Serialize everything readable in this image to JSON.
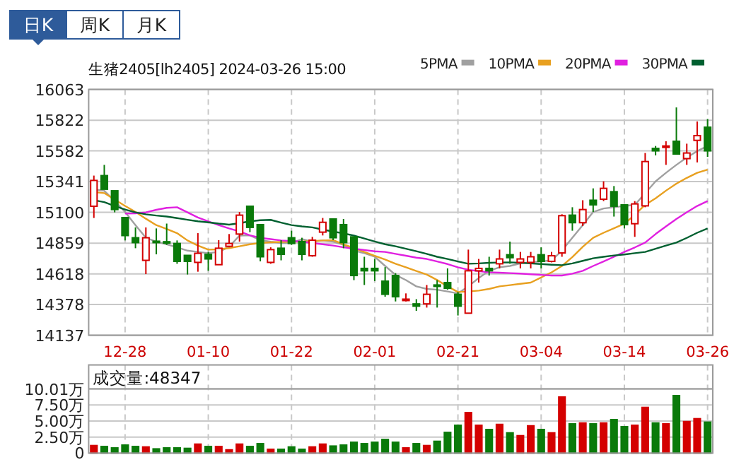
{
  "chart_data": [
    {
      "type": "candlestick",
      "title": "生猪2405[lh2405] 2024-03-26 15:00",
      "annotations": [
        "日K",
        "周K",
        "月K"
      ],
      "categories": [
        null,
        null,
        null,
        "12-28",
        null,
        null,
        null,
        null,
        null,
        null,
        null,
        "01-10",
        null,
        null,
        null,
        null,
        null,
        null,
        null,
        "01-22",
        null,
        null,
        null,
        null,
        null,
        null,
        null,
        "02-01",
        null,
        null,
        null,
        null,
        null,
        null,
        null,
        "02-21",
        null,
        null,
        null,
        null,
        null,
        null,
        null,
        "03-04",
        null,
        null,
        null,
        null,
        null,
        null,
        null,
        "03-14",
        null,
        null,
        null,
        null,
        null,
        null,
        null,
        "03-26"
      ],
      "ohlc": [
        [
          15148,
          15388,
          15056,
          15350
        ],
        [
          15388,
          15472,
          15281,
          15281
        ],
        [
          15269,
          15269,
          15100,
          15122
        ],
        [
          15059,
          15059,
          14880,
          14918
        ],
        [
          14901,
          14982,
          14819,
          14863
        ],
        [
          14724,
          14982,
          14616,
          14901
        ],
        [
          14874,
          14974,
          14771,
          14863
        ],
        [
          14870,
          15012,
          14845,
          14859
        ],
        [
          14856,
          14880,
          14697,
          14716
        ],
        [
          14763,
          14763,
          14613,
          14716
        ],
        [
          14708,
          14937,
          14635,
          14779
        ],
        [
          14771,
          14790,
          14642,
          14735
        ],
        [
          14690,
          14882,
          14690,
          14819
        ],
        [
          14834,
          14930,
          14826,
          14856
        ],
        [
          14930,
          15103,
          14871,
          15078
        ],
        [
          15148,
          15148,
          14945,
          14982
        ],
        [
          15004,
          15004,
          14716,
          14752
        ],
        [
          14708,
          14826,
          14697,
          14808
        ],
        [
          14819,
          14882,
          14724,
          14771
        ],
        [
          14901,
          14956,
          14845,
          14856
        ],
        [
          14871,
          14901,
          14724,
          14771
        ],
        [
          14760,
          14908,
          14752,
          14882
        ],
        [
          14945,
          15056,
          14919,
          15022
        ],
        [
          15048,
          15048,
          14882,
          14901
        ],
        [
          15004,
          15048,
          14819,
          14863
        ],
        [
          14908,
          14908,
          14569,
          14605
        ],
        [
          14661,
          14752,
          14531,
          14642
        ],
        [
          14661,
          14735,
          14561,
          14642
        ],
        [
          14561,
          14671,
          14439,
          14458
        ],
        [
          14605,
          14624,
          14402,
          14439
        ],
        [
          14409,
          14465,
          14402,
          14420
        ],
        [
          14383,
          14420,
          14328,
          14365
        ],
        [
          14383,
          14531,
          14354,
          14458
        ],
        [
          14531,
          14569,
          14354,
          14520
        ],
        [
          14550,
          14661,
          14494,
          14505
        ],
        [
          14458,
          14476,
          14292,
          14365
        ],
        [
          14310,
          14808,
          14310,
          14642
        ],
        [
          14642,
          14735,
          14550,
          14661
        ],
        [
          14661,
          14752,
          14605,
          14642
        ],
        [
          14697,
          14808,
          14661,
          14735
        ],
        [
          14768,
          14871,
          14697,
          14745
        ],
        [
          14708,
          14790,
          14661,
          14735
        ],
        [
          14708,
          14790,
          14661,
          14752
        ],
        [
          14768,
          14826,
          14661,
          14716
        ],
        [
          14716,
          14790,
          14708,
          14760
        ],
        [
          14782,
          15085,
          14752,
          15074
        ],
        [
          15078,
          15140,
          14956,
          15019
        ],
        [
          15019,
          15195,
          14993,
          15122
        ],
        [
          15195,
          15288,
          15103,
          15159
        ],
        [
          15203,
          15343,
          15188,
          15288
        ],
        [
          15262,
          15306,
          15067,
          15148
        ],
        [
          15159,
          15159,
          14974,
          15004
        ],
        [
          15011,
          15188,
          14908,
          15166
        ],
        [
          15151,
          15565,
          15140,
          15498
        ],
        [
          15601,
          15620,
          15546,
          15582
        ],
        [
          15609,
          15657,
          15472,
          15620
        ],
        [
          15657,
          15922,
          15557,
          15557
        ],
        [
          15521,
          15638,
          15472,
          15565
        ],
        [
          15664,
          15812,
          15491,
          15701
        ],
        [
          15767,
          15831,
          15535,
          15582
        ]
      ],
      "colors": [
        "#d40000",
        "#0a7a0a",
        "#0a7a0a",
        "#0a7a0a",
        "#0a7a0a",
        "#d40000",
        "#0a7a0a",
        "#0a7a0a",
        "#0a7a0a",
        "#0a7a0a",
        "#d40000",
        "#0a7a0a",
        "#d40000",
        "#d40000",
        "#d40000",
        "#0a7a0a",
        "#0a7a0a",
        "#d40000",
        "#0a7a0a",
        "#0a7a0a",
        "#0a7a0a",
        "#d40000",
        "#d40000",
        "#0a7a0a",
        "#0a7a0a",
        "#0a7a0a",
        "#0a7a0a",
        "#0a7a0a",
        "#0a7a0a",
        "#0a7a0a",
        "#d40000",
        "#0a7a0a",
        "#d40000",
        "#0a7a0a",
        "#0a7a0a",
        "#0a7a0a",
        "#d40000",
        "#d40000",
        "#0a7a0a",
        "#d40000",
        "#0a7a0a",
        "#d40000",
        "#d40000",
        "#0a7a0a",
        "#d40000",
        "#d40000",
        "#0a7a0a",
        "#d40000",
        "#0a7a0a",
        "#d40000",
        "#0a7a0a",
        "#0a7a0a",
        "#d40000",
        "#d40000",
        "#0a7a0a",
        "#d40000",
        "#0a7a0a",
        "#d40000",
        "#d40000",
        "#0a7a0a"
      ],
      "series": [
        {
          "name": "5PMA",
          "type": "line",
          "color": "#a0a0a0",
          "values": [
            15280,
            15269,
            15190,
            15103,
            15000,
            14901,
            14870,
            14850,
            14826,
            14800,
            14790,
            14780,
            14790,
            14830,
            14918,
            14920,
            14882,
            14870,
            14860,
            14860,
            14890,
            14870,
            14880,
            14870,
            14845,
            14800,
            14780,
            14752,
            14680,
            14610,
            14569,
            14520,
            14500,
            14494,
            14480,
            14465,
            14520,
            14586,
            14642,
            14670,
            14680,
            14700,
            14710,
            14715,
            14724,
            14800,
            14901,
            15000,
            15103,
            15130,
            15140,
            15150,
            15159,
            15250,
            15343,
            15410,
            15472,
            15530,
            15580,
            15620
          ]
        },
        {
          "name": "10PMA",
          "type": "line",
          "color": "#e8a020",
          "values": [
            15260,
            15251,
            15200,
            15150,
            15103,
            15050,
            15000,
            14970,
            14937,
            14880,
            14840,
            14808,
            14810,
            14820,
            14834,
            14850,
            14860,
            14865,
            14868,
            14870,
            14871,
            14875,
            14880,
            14882,
            14850,
            14820,
            14790,
            14760,
            14730,
            14697,
            14670,
            14640,
            14613,
            14570,
            14520,
            14476,
            14480,
            14487,
            14500,
            14520,
            14530,
            14540,
            14550,
            14590,
            14630,
            14680,
            14750,
            14830,
            14901,
            14940,
            14975,
            15011,
            15080,
            15159,
            15210,
            15270,
            15325,
            15370,
            15410,
            15435
          ]
        },
        {
          "name": "20PMA",
          "type": "line",
          "color": "#e020e0",
          "values": [
            null,
            null,
            null,
            15090,
            15092,
            15100,
            15120,
            15135,
            15140,
            15100,
            15060,
            15029,
            15000,
            14974,
            14950,
            14920,
            14900,
            14890,
            14880,
            14875,
            14871,
            14860,
            14850,
            14840,
            14826,
            14815,
            14805,
            14795,
            14790,
            14775,
            14760,
            14745,
            14735,
            14715,
            14695,
            14670,
            14650,
            14640,
            14630,
            14627,
            14624,
            14620,
            14615,
            14610,
            14605,
            14605,
            14620,
            14642,
            14680,
            14715,
            14752,
            14790,
            14825,
            14863,
            14930,
            14990,
            15048,
            15100,
            15150,
            15188
          ]
        },
        {
          "name": "30PMA",
          "type": "line",
          "color": "#006030",
          "values": [
            15195,
            15180,
            15150,
            15122,
            15100,
            15085,
            15075,
            15067,
            15055,
            15042,
            15030,
            15022,
            15012,
            15004,
            15015,
            15030,
            15038,
            15041,
            15020,
            15000,
            14990,
            14982,
            14965,
            14950,
            14935,
            14918,
            14895,
            14872,
            14850,
            14834,
            14815,
            14795,
            14775,
            14752,
            14735,
            14715,
            14697,
            14700,
            14705,
            14707,
            14708,
            14705,
            14700,
            14695,
            14690,
            14686,
            14700,
            14720,
            14740,
            14752,
            14762,
            14770,
            14780,
            14790,
            14815,
            14840,
            14863,
            14900,
            14940,
            14974
          ]
        }
      ],
      "ylim": [
        14137,
        16063
      ],
      "yticks": [
        14137,
        14378,
        14618,
        14859,
        15100,
        15341,
        15582,
        15822,
        16063
      ],
      "grid": true,
      "legend": "top right"
    },
    {
      "type": "bar",
      "title": "成交量:48347",
      "categories": [
        null,
        null,
        null,
        null,
        null,
        null,
        null,
        null,
        null,
        null,
        null,
        null,
        null,
        null,
        null,
        null,
        null,
        null,
        null,
        null,
        null,
        null,
        null,
        null,
        null,
        null,
        null,
        null,
        null,
        null,
        null,
        null,
        null,
        null,
        null,
        null,
        null,
        null,
        null,
        null,
        null,
        null,
        null,
        null,
        null,
        null,
        null,
        null,
        null,
        null,
        null,
        null,
        null,
        null,
        null,
        null,
        null,
        null,
        null,
        null
      ],
      "values": [
        1.18,
        1.03,
        0.81,
        1.25,
        1.03,
        0.96,
        0.66,
        0.81,
        0.81,
        0.74,
        1.4,
        1.03,
        1.03,
        0.51,
        1.4,
        1.03,
        1.47,
        0.59,
        0.59,
        0.96,
        0.59,
        0.96,
        1.4,
        1.1,
        1.25,
        1.69,
        1.47,
        1.69,
        2.13,
        1.69,
        0.81,
        1.47,
        1.18,
        1.84,
        3.23,
        4.34,
        6.32,
        4.34,
        3.68,
        4.48,
        3.16,
        2.72,
        4.26,
        3.68,
        3.16,
        8.75,
        4.56,
        4.7,
        4.56,
        4.7,
        5.22,
        4.12,
        4.34,
        7.13,
        4.7,
        4.56,
        8.97,
        4.92,
        5.37,
        4.83
      ],
      "colors": [
        "#d40000",
        "#0a7a0a",
        "#0a7a0a",
        "#0a7a0a",
        "#0a7a0a",
        "#d40000",
        "#0a7a0a",
        "#0a7a0a",
        "#0a7a0a",
        "#0a7a0a",
        "#d40000",
        "#0a7a0a",
        "#d40000",
        "#d40000",
        "#d40000",
        "#0a7a0a",
        "#0a7a0a",
        "#d40000",
        "#0a7a0a",
        "#0a7a0a",
        "#0a7a0a",
        "#d40000",
        "#d40000",
        "#0a7a0a",
        "#0a7a0a",
        "#0a7a0a",
        "#0a7a0a",
        "#0a7a0a",
        "#0a7a0a",
        "#0a7a0a",
        "#d40000",
        "#0a7a0a",
        "#d40000",
        "#0a7a0a",
        "#0a7a0a",
        "#0a7a0a",
        "#d40000",
        "#d40000",
        "#0a7a0a",
        "#d40000",
        "#0a7a0a",
        "#d40000",
        "#d40000",
        "#0a7a0a",
        "#d40000",
        "#d40000",
        "#0a7a0a",
        "#d40000",
        "#0a7a0a",
        "#d40000",
        "#0a7a0a",
        "#0a7a0a",
        "#d40000",
        "#d40000",
        "#0a7a0a",
        "#d40000",
        "#0a7a0a",
        "#d40000",
        "#d40000",
        "#0a7a0a"
      ],
      "ylim": [
        0,
        10.01
      ],
      "yticks": [
        0,
        {
          "value": 2.5,
          "label": "2.50万"
        },
        {
          "value": 5,
          "label": "5.00万"
        },
        {
          "value": 7.5,
          "label": "7.50万"
        },
        {
          "value": 10.01,
          "label": "10.01万"
        }
      ],
      "grid": true,
      "tick_labels": "y"
    }
  ]
}
